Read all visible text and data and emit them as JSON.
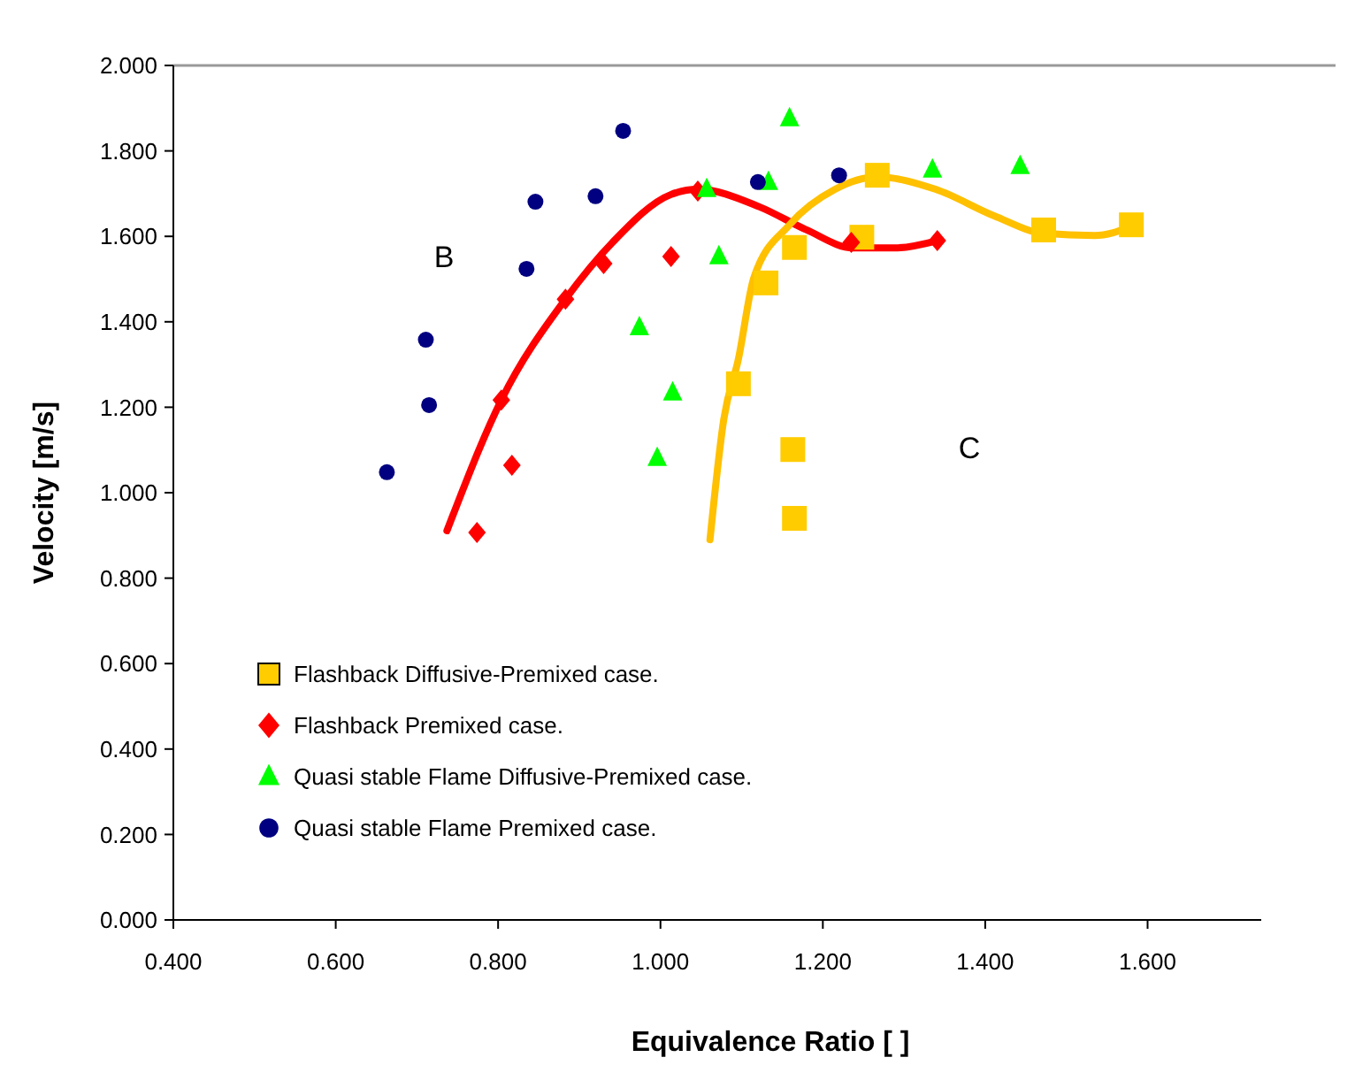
{
  "chart_data": {
    "type": "scatter",
    "xlabel": "Equivalence Ratio [ ]",
    "ylabel": "Velocity [m/s]",
    "xlim": [
      0.4,
      1.74
    ],
    "ylim": [
      0,
      2
    ],
    "xticks": [
      {
        "value": 0.4,
        "label": "0.400"
      },
      {
        "value": 0.6,
        "label": "0.600"
      },
      {
        "value": 0.8,
        "label": "0.800"
      },
      {
        "value": 1.0,
        "label": "1.000"
      },
      {
        "value": 1.2,
        "label": "1.200"
      },
      {
        "value": 1.4,
        "label": "1.400"
      },
      {
        "value": 1.6,
        "label": "1.600"
      }
    ],
    "yticks": [
      {
        "value": 0,
        "label": "0.000"
      },
      {
        "value": 0.2,
        "label": "0.200"
      },
      {
        "value": 0.4,
        "label": "0.400"
      },
      {
        "value": 0.6,
        "label": "0.600"
      },
      {
        "value": 0.8,
        "label": "0.800"
      },
      {
        "value": 1.0,
        "label": "1.000"
      },
      {
        "value": 1.2,
        "label": "1.200"
      },
      {
        "value": 1.4,
        "label": "1.400"
      },
      {
        "value": 1.6,
        "label": "1.600"
      },
      {
        "value": 1.8,
        "label": "1.800"
      },
      {
        "value": 2.0,
        "label": "2.000"
      }
    ],
    "grid": false,
    "legend": "bottom left",
    "series": [
      {
        "type": "line",
        "color": "#ff0000",
        "line_style": "solid",
        "x": [
          0.737,
          0.804,
          0.883,
          0.941,
          1.013,
          1.046,
          1.122,
          1.18,
          1.237,
          1.289,
          1.341
        ],
        "values": [
          0.911,
          1.217,
          1.453,
          1.586,
          1.698,
          1.71,
          1.669,
          1.615,
          1.573,
          1.573,
          1.59
        ]
      },
      {
        "type": "line",
        "color": "#ffc000",
        "line_style": "solid",
        "x": [
          1.061,
          1.078,
          1.096,
          1.115,
          1.159,
          1.215,
          1.267,
          1.339,
          1.411,
          1.472,
          1.535,
          1.58
        ],
        "values": [
          0.89,
          1.172,
          1.313,
          1.503,
          1.627,
          1.71,
          1.739,
          1.71,
          1.648,
          1.607,
          1.602,
          1.623
        ]
      },
      {
        "name": "Flashback Diffusive-Premixed case.",
        "color": "#ffcc00",
        "marker": "square",
        "x": [
          1.096,
          1.13,
          1.165,
          1.163,
          1.165,
          1.248,
          1.267,
          1.472,
          1.58
        ],
        "values": [
          1.255,
          1.491,
          1.574,
          1.101,
          0.94,
          1.598,
          1.743,
          1.615,
          1.627
        ]
      },
      {
        "name": "Flashback Premixed case.",
        "color": "#ff0000",
        "marker": "diamond",
        "x": [
          0.774,
          0.817,
          0.804,
          0.883,
          0.93,
          1.013,
          1.046,
          1.235,
          1.341
        ],
        "values": [
          0.907,
          1.064,
          1.217,
          1.453,
          1.536,
          1.553,
          1.706,
          1.586,
          1.59
        ]
      },
      {
        "name": "Quasi stable Flame Diffusive-Premixed case.",
        "color": "#00ff00",
        "marker": "triangle",
        "x": [
          0.996,
          1.015,
          0.974,
          1.072,
          1.057,
          1.133,
          1.159,
          1.335,
          1.443
        ],
        "values": [
          1.081,
          1.234,
          1.387,
          1.553,
          1.71,
          1.727,
          1.876,
          1.756,
          1.764
        ]
      },
      {
        "name": "Quasi stable Flame Premixed case.",
        "color": "#000080",
        "marker": "circle",
        "x": [
          0.663,
          0.715,
          0.711,
          0.835,
          0.846,
          0.92,
          0.954,
          1.12,
          1.22
        ],
        "values": [
          1.048,
          1.205,
          1.358,
          1.524,
          1.681,
          1.694,
          1.847,
          1.727,
          1.743
        ]
      }
    ],
    "annotations": [
      "B",
      "C"
    ]
  }
}
